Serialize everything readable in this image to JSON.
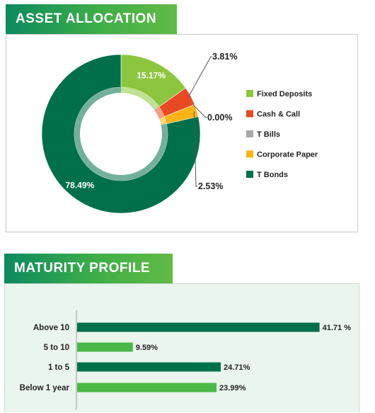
{
  "asset_section": {
    "title": "ASSET ALLOCATION"
  },
  "maturity_section": {
    "title": "MATURITY PROFILE"
  },
  "colors": {
    "fixed_deposits": "#8cc63f",
    "cash_call": "#e84a25",
    "t_bills": "#a7a9ac",
    "corporate_paper": "#fbb416",
    "t_bonds": "#00704a",
    "bar_dark": "#00704a",
    "bar_light": "#4ab846"
  },
  "chart_data": [
    {
      "type": "pie",
      "title": "ASSET ALLOCATION",
      "slices": [
        {
          "name": "Fixed Deposits",
          "value": 15.17,
          "label": "15.17%",
          "color": "#8cc63f"
        },
        {
          "name": "Cash & Call",
          "value": 3.81,
          "label": "3.81%",
          "color": "#e84a25"
        },
        {
          "name": "T Bills",
          "value": 0.0,
          "label": "0.00%",
          "color": "#a7a9ac"
        },
        {
          "name": "Corporate Paper",
          "value": 2.53,
          "label": "2.53%",
          "color": "#fbb416"
        },
        {
          "name": "T Bonds",
          "value": 78.49,
          "label": "78.49%",
          "color": "#00704a"
        }
      ],
      "legend": [
        "Fixed Deposits",
        "Cash & Call",
        "T Bills",
        "Corporate Paper",
        "T Bonds"
      ],
      "legend_position": "right"
    },
    {
      "type": "bar",
      "orientation": "horizontal",
      "title": "MATURITY PROFILE",
      "categories": [
        "Above 10",
        "5 to 10",
        "1 to 5",
        "Below 1 year"
      ],
      "values": [
        41.71,
        9.59,
        24.71,
        23.99
      ],
      "value_labels": [
        "41.71 %",
        "9.59%",
        "24.71%",
        "23.99%"
      ],
      "colors": [
        "#00704a",
        "#4ab846",
        "#00704a",
        "#4ab846"
      ],
      "xlim": [
        0,
        42
      ]
    }
  ]
}
